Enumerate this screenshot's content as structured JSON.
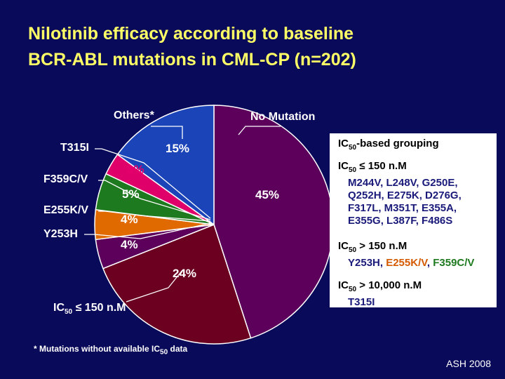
{
  "title_line1": "Nilotinib efficacy according to baseline",
  "title_line2": "BCR-ABL mutations in CML-CP (n=202)",
  "chart_data": {
    "type": "pie",
    "title": "Nilotinib efficacy according to baseline BCR-ABL mutations in CML-CP (n=202)",
    "slices": [
      {
        "name": "No Mutation",
        "value": 45,
        "label": "45%",
        "color": "#5c005c"
      },
      {
        "name": "IC50 ≤ 150 nM",
        "value": 24,
        "label": "24%",
        "color": "#6b0020"
      },
      {
        "name": "Y253H",
        "value": 4,
        "label": "4%",
        "color": "#5c005c"
      },
      {
        "name": "E255K/V",
        "value": 4,
        "label": "4%",
        "color": "#e06a00"
      },
      {
        "name": "F359C/V",
        "value": 5,
        "label": "5%",
        "color": "#1e7a1e"
      },
      {
        "name": "T315I",
        "value": 3,
        "label": "3%",
        "color": "#e0006a"
      },
      {
        "name": "Others*",
        "value": 15,
        "label": "15%",
        "color": "#1a44b8"
      }
    ]
  },
  "labels": {
    "others": "Others*",
    "no_mutation": "No Mutation",
    "t315i": "T315I",
    "f359": "F359C/V",
    "e255": "E255K/V",
    "y253": "Y253H",
    "ic50_low": "IC",
    "ic50_low_sub": "50",
    "ic50_low_rest": " ≤ 150 n.M"
  },
  "legend": {
    "head_a": "IC",
    "head_sub": "50",
    "head_b": "-based grouping",
    "g1_a": "IC",
    "g1_sub": "50",
    "g1_b": " ≤ 150 n.M",
    "g1_m1": "M244V, L248V, G250E,",
    "g1_m2": "Q252H, E275K, D276G,",
    "g1_m3": "F317L, M351T, E355A,",
    "g1_m4": "E355G, L387F, F486S",
    "g2_a": "IC",
    "g2_sub": "50",
    "g2_b": " > 150 n.M",
    "g2_m_a": "Y253H, ",
    "g2_m_b": "E255K/V",
    "g2_m_c": ", ",
    "g2_m_d": "F359C/V",
    "g3_a": "IC",
    "g3_sub": "50",
    "g3_b": " > 10,000 n.M",
    "g3_m": "T315I"
  },
  "footnote_a": "* Mutations without available IC",
  "footnote_sub": "50",
  "footnote_b": " data",
  "source": "ASH 2008"
}
